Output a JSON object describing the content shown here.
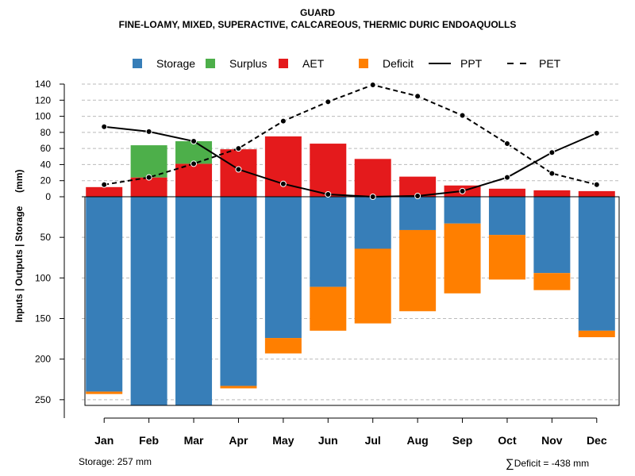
{
  "title": "GUARD",
  "subtitle": "FINE-LOAMY, MIXED, SUPERACTIVE, CALCAREOUS, THERMIC DURIC ENDOAQUOLLS",
  "footer": {
    "storage_text": "Storage: 257 mm",
    "sum_symbol": "∑",
    "deficit_text": "Deficit = -438 mm"
  },
  "colors": {
    "storage": "#377EB8",
    "surplus": "#4DAF4A",
    "aet": "#E41A1C",
    "deficit": "#FF7F00"
  },
  "chart_data": {
    "type": "bar",
    "ylabel": "Inputs | Outputs | Storage     (mm)",
    "upper_ylim": [
      0,
      140
    ],
    "upper_ticks": [
      0,
      20,
      40,
      60,
      80,
      100,
      120,
      140
    ],
    "lower_ylim": [
      0,
      257
    ],
    "lower_ticks": [
      50,
      100,
      150,
      200,
      250
    ],
    "categories": [
      "Jan",
      "Feb",
      "Mar",
      "Apr",
      "May",
      "Jun",
      "Jul",
      "Aug",
      "Sep",
      "Oct",
      "Nov",
      "Dec"
    ],
    "legend": [
      {
        "label": "Storage",
        "kind": "box",
        "series": "storage"
      },
      {
        "label": "Surplus",
        "kind": "box",
        "series": "surplus"
      },
      {
        "label": "AET",
        "kind": "box",
        "series": "aet"
      },
      {
        "label": "Deficit",
        "kind": "box",
        "series": "deficit"
      },
      {
        "label": "PPT",
        "kind": "solid"
      },
      {
        "label": "PET",
        "kind": "dashed"
      }
    ],
    "series": {
      "aet": [
        12,
        24,
        41,
        59,
        75,
        66,
        47,
        25,
        14,
        10,
        8,
        7
      ],
      "surplus": [
        0,
        40,
        28,
        0,
        0,
        0,
        0,
        0,
        0,
        0,
        0,
        0
      ],
      "storage": [
        240,
        257,
        257,
        233,
        174,
        111,
        64,
        41,
        33,
        47,
        94,
        165
      ],
      "deficit": [
        3,
        0,
        0,
        3,
        19,
        54,
        92,
        100,
        86,
        55,
        21,
        8
      ],
      "ppt": [
        87,
        81,
        69,
        34,
        16,
        3,
        0,
        1,
        7,
        24,
        55,
        79
      ],
      "pet": [
        15,
        24,
        41,
        60,
        94,
        118,
        139,
        125,
        101,
        66,
        29,
        15
      ]
    }
  }
}
